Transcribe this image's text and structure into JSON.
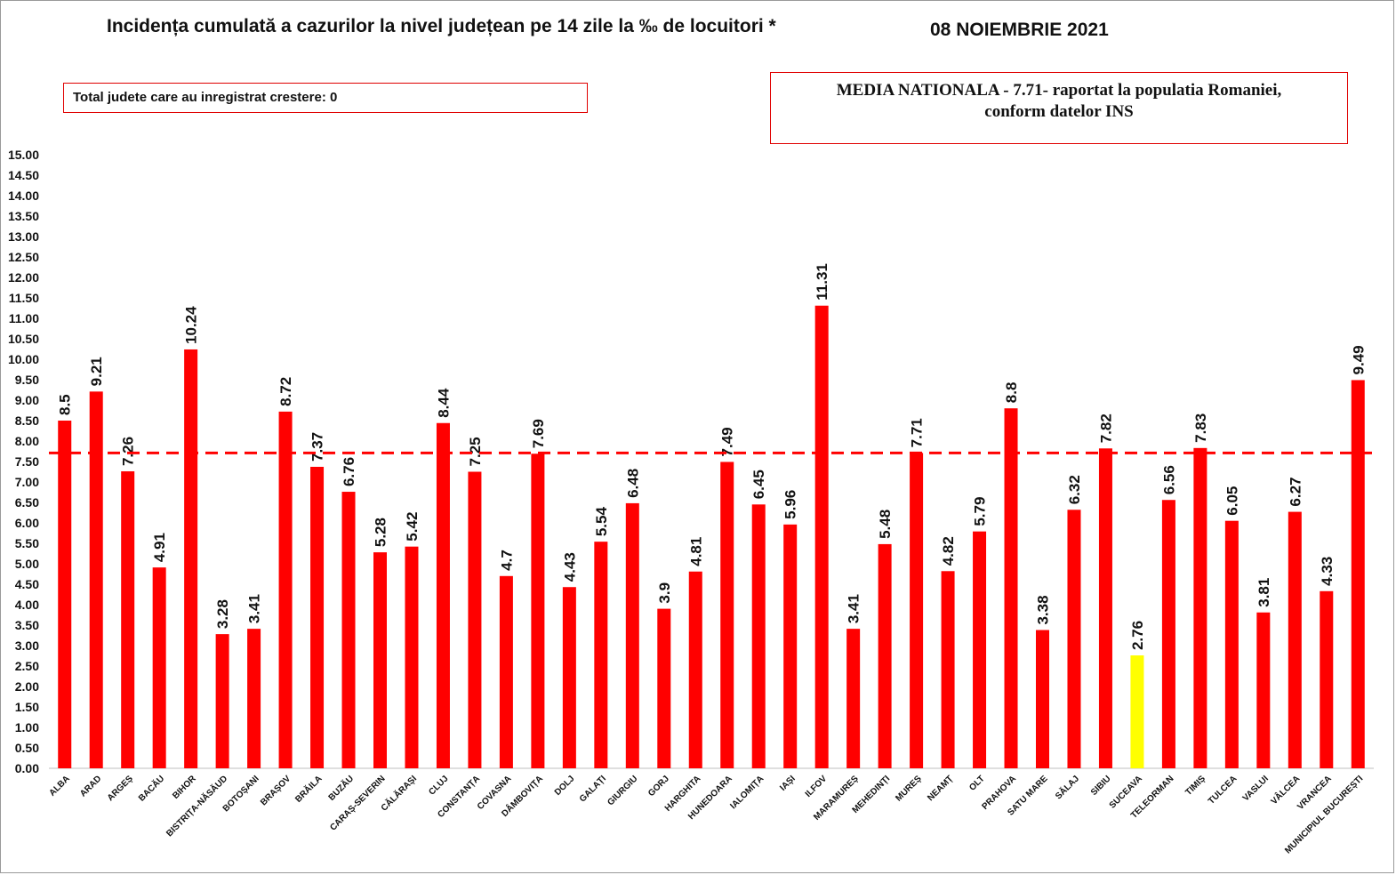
{
  "header": {
    "title": "Incidența cumulată a cazurilor la nivel județean pe 14 zile la ‰ de locuitori *",
    "date": "08 NOIEMBRIE 2021"
  },
  "boxes": {
    "left_text": "Total judete care au inregistrat crestere: 0",
    "right_line1": "MEDIA NATIONALA - 7.71-  raportat la populatia Romaniei,",
    "right_line2": "conform datelor INS"
  },
  "colors": {
    "bar": "#ff0000",
    "highlight": "#ffff00",
    "average_line": "#ff0000"
  },
  "chart_data": {
    "type": "bar",
    "ylim": [
      0,
      15
    ],
    "ytick_step": 0.5,
    "average": 7.71,
    "highlight_category": "SUCEAVA",
    "categories": [
      "ALBA",
      "ARAD",
      "ARGEȘ",
      "BACĂU",
      "BIHOR",
      "BISTRIȚA-NĂSĂUD",
      "BOTOȘANI",
      "BRAȘOV",
      "BRĂILA",
      "BUZĂU",
      "CARAȘ-SEVERIN",
      "CĂLĂRAȘI",
      "CLUJ",
      "CONSTANȚA",
      "COVASNA",
      "DÂMBOVIȚA",
      "DOLJ",
      "GALAȚI",
      "GIURGIU",
      "GORJ",
      "HARGHITA",
      "HUNEDOARA",
      "IALOMIȚA",
      "IAȘI",
      "ILFOV",
      "MARAMUREȘ",
      "MEHEDINȚI",
      "MUREȘ",
      "NEAMȚ",
      "OLT",
      "PRAHOVA",
      "SATU MARE",
      "SĂLAJ",
      "SIBIU",
      "SUCEAVA",
      "TELEORMAN",
      "TIMIȘ",
      "TULCEA",
      "VASLUI",
      "VÂLCEA",
      "VRANCEA",
      "MUNICIPIUL BUCUREȘTI"
    ],
    "values": [
      8.5,
      9.21,
      7.26,
      4.91,
      10.24,
      3.28,
      3.41,
      8.72,
      7.37,
      6.76,
      5.28,
      5.42,
      8.44,
      7.25,
      4.7,
      7.69,
      4.43,
      5.54,
      6.48,
      3.9,
      4.81,
      7.49,
      6.45,
      5.96,
      11.31,
      3.41,
      5.48,
      7.71,
      4.82,
      5.79,
      8.8,
      3.38,
      6.32,
      7.82,
      2.76,
      6.56,
      7.83,
      6.05,
      3.81,
      6.27,
      4.33,
      9.49
    ],
    "value_labels": [
      "8.5",
      "9.21",
      "7.26",
      "4.91",
      "10.24",
      "3.28",
      "3.41",
      "8.72",
      "7.37",
      "6.76",
      "5.28",
      "5.42",
      "8.44",
      "7.25",
      "4.7",
      "7.69",
      "4.43",
      "5.54",
      "6.48",
      "3.9",
      "4.81",
      "7.49",
      "6.45",
      "5.96",
      "11.31",
      "3.41",
      "5.48",
      "7.71",
      "4.82",
      "5.79",
      "8.8",
      "3.38",
      "6.32",
      "7.82",
      "2.76",
      "6.56",
      "7.83",
      "6.05",
      "3.81",
      "6.27",
      "4.33",
      "9.49"
    ]
  }
}
